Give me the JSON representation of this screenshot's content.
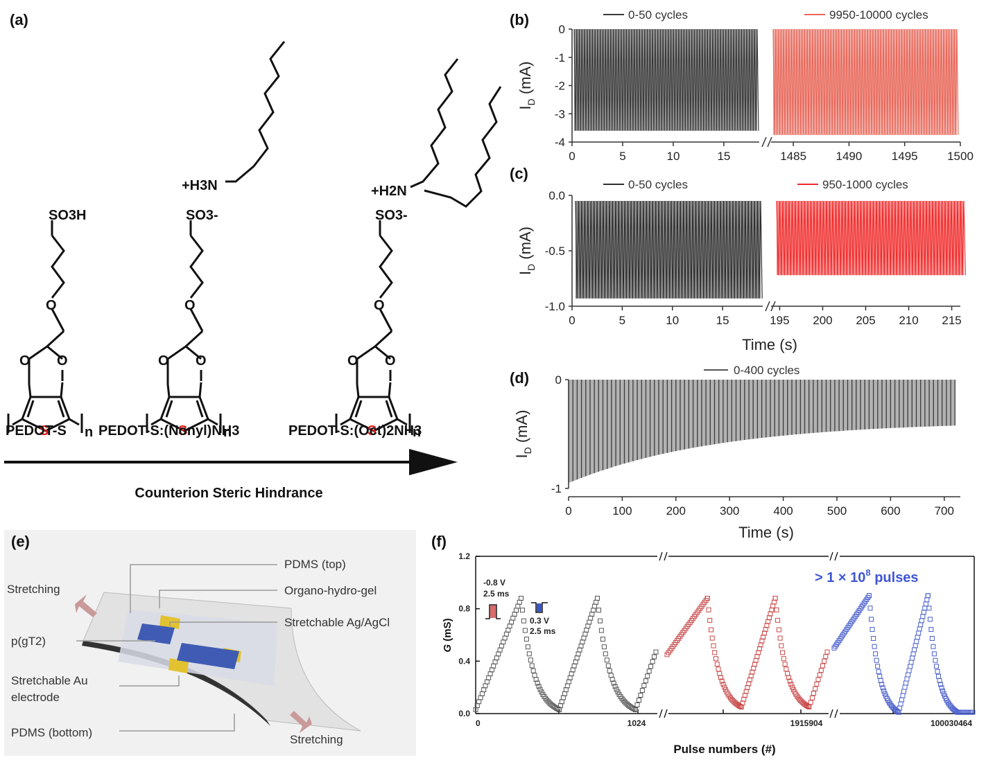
{
  "panels": {
    "a": {
      "label": "(a)",
      "compounds": [
        {
          "name": "PEDOT-S",
          "group": "SO3H"
        },
        {
          "name": "PEDOT-S:(Nonyl)NH3",
          "group": "SO3-",
          "cation": "+H3N"
        },
        {
          "name": "PEDOT-S:(Oct)2NH3",
          "group": "SO3-",
          "cation": "+H2N"
        }
      ],
      "ring_atoms": {
        "o": "O",
        "s": "S",
        "n": "n"
      },
      "arrow_label": "Counterion Steric Hindrance"
    },
    "b": {
      "label": "(b)"
    },
    "c": {
      "label": "(c)"
    },
    "d": {
      "label": "(d)"
    },
    "e": {
      "label": "(e)",
      "labels": {
        "pdms_top": "PDMS (top)",
        "gel": "Organo-hydro-gel",
        "agcl": "Stretchable Ag/AgCl",
        "pgt2": "p(gT2)",
        "au_1": "Stretchable Au",
        "au_2": "electrode",
        "pdms_bottom": "PDMS (bottom)",
        "stretch_left": "Stretching",
        "stretch_right": "Stretching"
      }
    },
    "f": {
      "label": "(f)",
      "annot": {
        "v1": "-0.8 V",
        "t1": "2.5 ms",
        "v2": "0.3 V",
        "t2": "2.5 ms"
      },
      "pulses_text": "> 1 × 10",
      "pulses_exp": "8",
      "pulses_suffix": " pulses"
    }
  },
  "chart_data": [
    {
      "panel": "b",
      "type": "line",
      "ylabel_main": "I",
      "ylabel_sub": "D",
      "ylabel_unit": " (mA)",
      "ylim": [
        -4,
        0
      ],
      "yticks": [
        "0",
        "-1",
        "-2",
        "-3",
        "-4"
      ],
      "segments": [
        {
          "xticks": [
            "0",
            "5",
            "10",
            "15"
          ],
          "xlim": [
            0,
            18.5
          ]
        },
        {
          "xticks": [
            "1485",
            "1490",
            "1495",
            "1500"
          ],
          "xlim": [
            1483,
            1500
          ]
        }
      ],
      "series": [
        {
          "name": "0-50 cycles",
          "color": "#3a3a3a",
          "min": -3.6,
          "max": 0
        },
        {
          "name": "9950-10000 cycles",
          "color": "#e8675a",
          "min": -3.75,
          "max": 0
        }
      ]
    },
    {
      "panel": "c",
      "type": "line",
      "ylabel_main": "I",
      "ylabel_sub": "D",
      "ylabel_unit": " (mA)",
      "xlabel": "Time (s)",
      "ylim": [
        -1.0,
        0.0
      ],
      "yticks": [
        "0.0",
        "-0.5",
        "-1.0"
      ],
      "segments": [
        {
          "xticks": [
            "0",
            "5",
            "10",
            "15"
          ],
          "xlim": [
            0,
            19
          ]
        },
        {
          "xticks": [
            "195",
            "200",
            "205",
            "210",
            "215"
          ],
          "xlim": [
            194,
            216
          ]
        }
      ],
      "series": [
        {
          "name": "0-50 cycles",
          "color": "#2e2e2e",
          "min": -0.93,
          "max": -0.05
        },
        {
          "name": "950-1000 cycles",
          "color": "#f02a2a",
          "min": -0.72,
          "max": -0.05
        }
      ]
    },
    {
      "panel": "d",
      "type": "line",
      "ylabel_main": "I",
      "ylabel_sub": "D",
      "ylabel_unit": " (mA)",
      "xlabel": "Time (s)",
      "ylim": [
        -1,
        0
      ],
      "yticks": [
        "0",
        "-1"
      ],
      "xticks": [
        "0",
        "100",
        "200",
        "300",
        "400",
        "500",
        "600",
        "700"
      ],
      "xlim": [
        0,
        730
      ],
      "series": [
        {
          "name": "0-400 cycles",
          "color": "#555555",
          "min_start": -0.95,
          "min_end": -0.38,
          "max": 0
        }
      ]
    },
    {
      "panel": "f",
      "type": "scatter",
      "ylabel": "G",
      "ylabel_unit": " (mS)",
      "xlabel": "Pulse numbers (#)",
      "ylim": [
        0,
        1.2
      ],
      "yticks": [
        "0.0",
        "0.4",
        "0.8",
        "1.2"
      ],
      "xtick_labels": [
        "0",
        "1024",
        "1915904",
        "100030464"
      ],
      "series": [
        {
          "name": "start",
          "color": "#555555",
          "peak": 0.88,
          "min": 0.03
        },
        {
          "name": "middle",
          "color": "#c84848",
          "peak": 0.88,
          "min": 0.05
        },
        {
          "name": "end",
          "color": "#4a5fcc",
          "peak": 0.9,
          "min": 0.01
        }
      ]
    }
  ]
}
